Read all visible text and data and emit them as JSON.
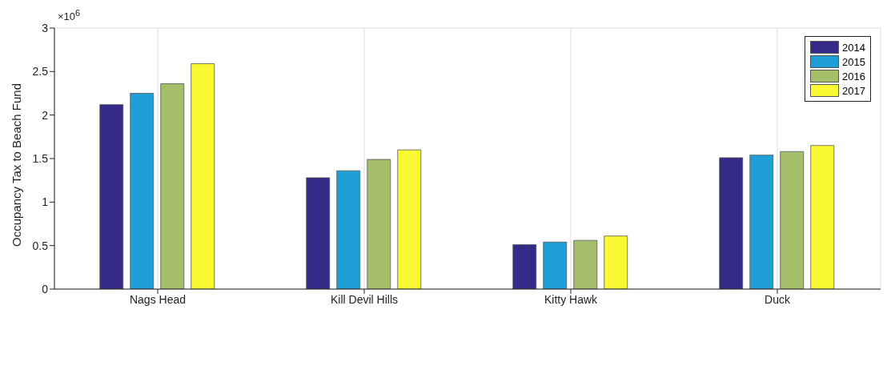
{
  "chart_data": {
    "type": "bar",
    "ylabel": "Occupancy Tax to Beach Fund",
    "annotations": [
      "×10$^{6}$"
    ],
    "categories": [
      "Nags Head",
      "Kill Devil Hills",
      "Kitty Hawk",
      "Duck"
    ],
    "series": [
      {
        "name": "2014",
        "color": "#352a87",
        "values": [
          2.12,
          1.28,
          0.51,
          1.51
        ]
      },
      {
        "name": "2015",
        "color": "#1f9ed6",
        "values": [
          2.25,
          1.36,
          0.54,
          1.54
        ]
      },
      {
        "name": "2016",
        "color": "#a5be6a",
        "values": [
          2.36,
          1.49,
          0.56,
          1.58
        ]
      },
      {
        "name": "2017",
        "color": "#f9f933",
        "values": [
          2.59,
          1.6,
          0.61,
          1.65
        ]
      }
    ],
    "ylim": [
      0,
      3
    ],
    "yticks": [
      0,
      0.5,
      1,
      1.5,
      2,
      2.5,
      3
    ],
    "grid": true,
    "legend": "top right"
  }
}
